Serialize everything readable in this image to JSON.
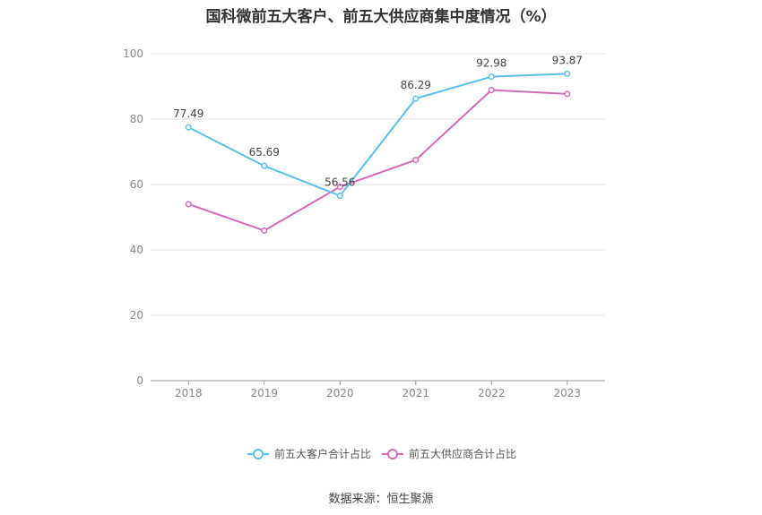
{
  "title": "国科微前五大客户、前五大供应商集中度情况（%）",
  "source": "数据来源：恒生聚源",
  "chart_data": {
    "type": "line",
    "categories": [
      "2018",
      "2019",
      "2020",
      "2021",
      "2022",
      "2023"
    ],
    "ylim": [
      0,
      100
    ],
    "yticks": [
      "0",
      "20",
      "40",
      "60",
      "80",
      "100"
    ],
    "grid": true,
    "legend_position": "bottom",
    "series": [
      {
        "name": "前五大客户合计占比",
        "color": "#5bc0eb",
        "values": [
          77.49,
          65.69,
          56.56,
          86.29,
          92.98,
          93.87
        ],
        "labels": [
          "77.49",
          "65.69",
          "56.56",
          "86.29",
          "92.98",
          "93.87"
        ]
      },
      {
        "name": "前五大供应商合计占比",
        "color": "#d36bb8",
        "values": [
          54.0,
          45.9,
          59.3,
          67.5,
          88.9,
          87.7
        ],
        "labels": []
      }
    ]
  }
}
